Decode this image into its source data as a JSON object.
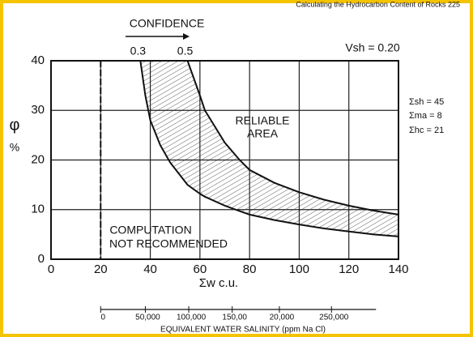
{
  "page_header": "Calculating the Hydrocarbon Content of Rocks   225",
  "chart_data": {
    "type": "line",
    "confidence_label": "CONFIDENCE",
    "vsh_label": "Vsh = 0.20",
    "parameters": [
      "Σsh = 45",
      "Σma = 8",
      "Σhc = 21"
    ],
    "annotations": [
      "RELIABLE",
      "AREA",
      "COMPUTATION",
      "NOT RECOMMENDED"
    ],
    "ylabel": [
      "φ",
      "%"
    ],
    "xlabel": "Σw c.u.",
    "x2label": "EQUIVALENT WATER SALINITY (ppm Na Cl)",
    "x": [
      36,
      38,
      40,
      44,
      48,
      55,
      60,
      62,
      70,
      76,
      80,
      90,
      100,
      110,
      120,
      130,
      140
    ],
    "series": [
      {
        "name": "0.3",
        "color": "#111111",
        "values": [
          40,
          33,
          28,
          23,
          19.5,
          15,
          13.2,
          12.6,
          10.8,
          9.7,
          9,
          7.9,
          7,
          6.2,
          5.6,
          5,
          4.6
        ]
      },
      {
        "name": "0.5",
        "color": "#111111",
        "values": [
          null,
          null,
          null,
          null,
          null,
          40,
          33,
          30,
          23.5,
          20,
          18,
          15.4,
          13.5,
          12,
          10.8,
          9.8,
          9.0
        ]
      }
    ],
    "vline": 20,
    "xlim": [
      0,
      140
    ],
    "xticks": [
      0,
      20,
      40,
      60,
      80,
      100,
      120,
      140
    ],
    "ylim": [
      0,
      40
    ],
    "yticks": [
      0,
      10,
      20,
      30,
      40
    ],
    "x2ticks": [
      {
        "value": 20,
        "label": "0"
      },
      {
        "value": 38,
        "label": "50,000"
      },
      {
        "value": 55.5,
        "label": "100,000"
      },
      {
        "value": 73,
        "label": "150,00"
      },
      {
        "value": 92,
        "label": "20,000"
      },
      {
        "value": 113,
        "label": "250,000"
      }
    ],
    "grid": true
  }
}
